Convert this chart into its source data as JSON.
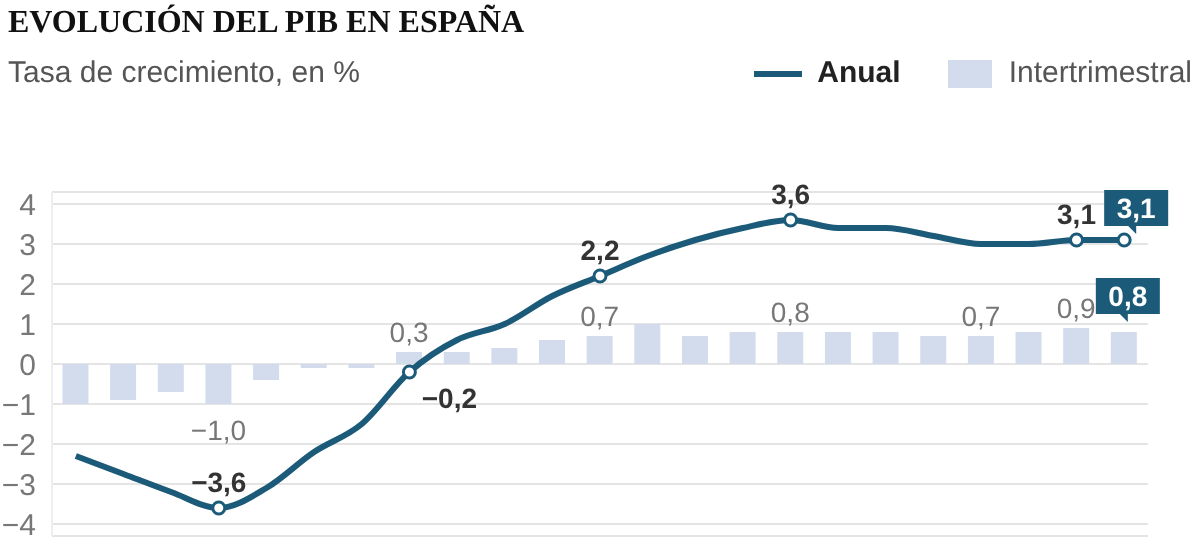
{
  "chart_data": {
    "type": "bar",
    "title": "EVOLUCIÓN DEL PIB EN ESPAÑA",
    "subtitle": "Tasa de crecimiento, en %",
    "categories": [
      null,
      null,
      null,
      null,
      null,
      null,
      null,
      null,
      null,
      null,
      null,
      null,
      null,
      null,
      null,
      null,
      null,
      null,
      null,
      null,
      null,
      null,
      null
    ],
    "series": [
      {
        "name": "Anual",
        "type": "line",
        "color": "#1b5a78",
        "values": [
          -2.3,
          -2.75,
          -3.2,
          -3.6,
          -3.1,
          -2.2,
          -1.5,
          -0.2,
          0.6,
          1.0,
          1.7,
          2.2,
          2.7,
          3.1,
          3.4,
          3.6,
          3.4,
          3.4,
          3.2,
          3.0,
          3.0,
          3.1,
          3.1
        ],
        "value_labels": [
          null,
          null,
          null,
          "−3,6",
          null,
          null,
          null,
          "−0,2",
          null,
          null,
          null,
          "2,2",
          null,
          null,
          null,
          "3,6",
          null,
          null,
          null,
          null,
          null,
          "3,1",
          "3,1"
        ]
      },
      {
        "name": "Intertrimestral",
        "color": "#d3dcec",
        "values": [
          -1.0,
          -0.9,
          -0.7,
          -1.0,
          -0.4,
          -0.1,
          -0.1,
          0.3,
          0.3,
          0.4,
          0.6,
          0.7,
          1.0,
          0.7,
          0.8,
          0.8,
          0.8,
          0.8,
          0.7,
          0.7,
          0.8,
          0.9,
          0.8
        ],
        "value_labels": [
          null,
          null,
          null,
          "−1,0",
          null,
          null,
          null,
          "0,3",
          null,
          null,
          null,
          "0,7",
          null,
          null,
          null,
          "0,8",
          null,
          null,
          null,
          "0,7",
          null,
          "0,9",
          "0,8"
        ]
      }
    ],
    "ylim": [
      -4.3,
      4.3
    ],
    "yticks": [
      {
        "value": -4,
        "label": "−4"
      },
      {
        "value": -3,
        "label": "−3"
      },
      {
        "value": -2,
        "label": "−2"
      },
      {
        "value": -1,
        "label": "−1"
      },
      0,
      1,
      2,
      3,
      4
    ],
    "grid": "y",
    "legend": "top right"
  }
}
